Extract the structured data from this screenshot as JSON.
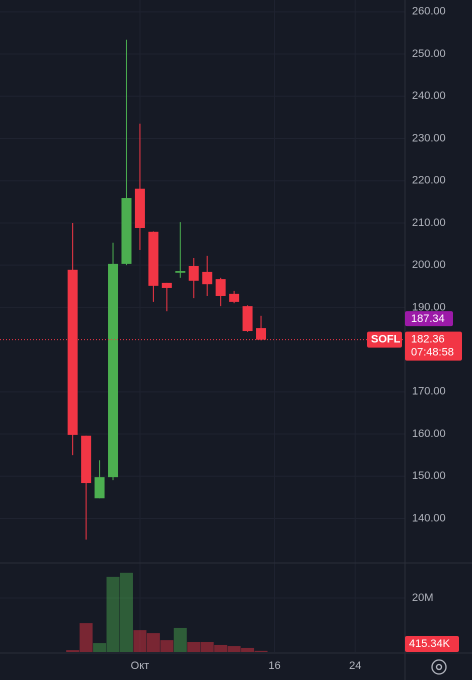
{
  "chart_data": {
    "type": "candlestick",
    "symbol": "SOFL",
    "countdown": "07:48:58",
    "marker_price": {
      "value": 187.34,
      "label": "187.34"
    },
    "up_color": "#4caf50",
    "down_color": "#f23645",
    "marker_color": "#9c1aa8",
    "open": [
      198.9,
      159.6,
      144.8,
      149.8,
      200.3,
      218.1,
      207.9,
      195.8,
      198.2,
      199.8,
      198.4,
      196.7,
      193.2,
      190.3,
      185.1
    ],
    "high": [
      210.0,
      159.6,
      153.8,
      205.3,
      253.4,
      233.5,
      208.0,
      195.8,
      210.2,
      201.7,
      202.2,
      197.0,
      193.9,
      190.5,
      188.0
    ],
    "low": [
      155.0,
      135.0,
      144.8,
      149.1,
      200.0,
      203.6,
      191.3,
      189.1,
      197.0,
      192.2,
      192.7,
      190.3,
      191.0,
      184.2,
      182.2
    ],
    "close": [
      159.8,
      148.4,
      149.8,
      200.3,
      215.9,
      208.8,
      195.1,
      194.6,
      198.6,
      196.3,
      195.5,
      192.7,
      191.3,
      184.4,
      182.36
    ],
    "volume": [
      700000,
      10700000,
      3300000,
      27800000,
      29300000,
      8100000,
      7000000,
      4400000,
      8900000,
      3700000,
      3700000,
      2600000,
      2200000,
      1500000,
      415340
    ],
    "volume_labels": [
      null,
      null,
      null,
      null,
      null,
      null,
      null,
      null,
      null,
      null,
      null,
      null,
      null,
      null,
      "415.34K"
    ],
    "xlim": [
      -5.4,
      24.7
    ],
    "xticks": [
      {
        "value": 5,
        "label": "Окт"
      },
      {
        "value": 15,
        "label": "16"
      },
      {
        "value": 21,
        "label": "24"
      }
    ],
    "ylim": [
      129.7,
      262.8
    ],
    "yticks": [
      {
        "value": 140,
        "label": "140.00"
      },
      {
        "value": 150,
        "label": "150.00"
      },
      {
        "value": 160,
        "label": "160.00"
      },
      {
        "value": 170,
        "label": "170.00"
      },
      {
        "value": 190,
        "label": "190.00"
      },
      {
        "value": 200,
        "label": "200.00"
      },
      {
        "value": 210,
        "label": "210.00"
      },
      {
        "value": 220,
        "label": "220.00"
      },
      {
        "value": 230,
        "label": "230.00"
      },
      {
        "value": 240,
        "label": "240.00"
      },
      {
        "value": 250,
        "label": "250.00"
      },
      {
        "value": 260,
        "label": "260.00"
      }
    ],
    "volume_ylim": [
      0,
      32200000
    ],
    "volume_yticks": [
      {
        "value": 20000000,
        "label": "20M"
      }
    ],
    "grid": true
  }
}
